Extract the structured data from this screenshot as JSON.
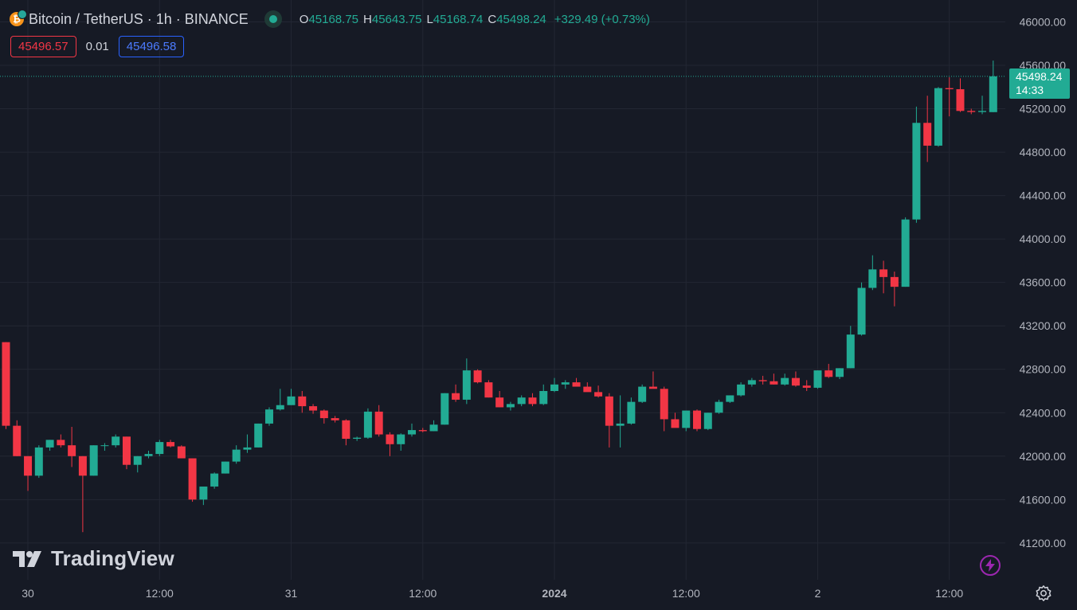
{
  "legend": {
    "symbol": "Bitcoin / TetherUS · 1h · BINANCE",
    "coin_glyph": "₿",
    "open_label": "O",
    "open": "45168.75",
    "high_label": "H",
    "high": "45643.75",
    "low_label": "L",
    "low": "45168.74",
    "close_label": "C",
    "close": "45498.24",
    "change": "+329.49 (+0.73%)"
  },
  "quote": {
    "sell": "45496.57",
    "spread": "0.01",
    "buy": "45496.58"
  },
  "price_tag": {
    "price": "45498.24",
    "countdown": "14:33"
  },
  "branding": {
    "logo_text": "TradingView"
  },
  "colors": {
    "background": "#161a25",
    "grid": "#232733",
    "up": "#22ab94",
    "down": "#f23645",
    "text": "#d1d4dc",
    "axis_text": "#b2b5be",
    "buy_border": "#2962ff",
    "flash": "#9c27b0"
  },
  "icons": {
    "market_status": "green-dot-icon",
    "flash": "lightning-icon",
    "settings": "gear-icon",
    "coin": "bitcoin-icon",
    "logo": "tradingview-icon"
  },
  "chart_data": {
    "type": "candlestick",
    "title": "Bitcoin / TetherUS · 1h · BINANCE",
    "interval": "1h",
    "ylim": [
      40950,
      46180
    ],
    "y_ticks": [
      41200,
      41600,
      42000,
      42400,
      42800,
      43200,
      43600,
      44000,
      44400,
      44800,
      45200,
      45600,
      46000
    ],
    "y_tick_labels": [
      "41200.00",
      "41600.00",
      "42000.00",
      "42400.00",
      "42800.00",
      "43200.00",
      "43600.00",
      "44000.00",
      "44400.00",
      "44800.00",
      "45200.00",
      "45600.00",
      "46000.00"
    ],
    "x_ticks": [
      {
        "label": "30",
        "bar": 2
      },
      {
        "label": "12:00",
        "bar": 14
      },
      {
        "label": "31",
        "bar": 26
      },
      {
        "label": "12:00",
        "bar": 38
      },
      {
        "label": "2024",
        "bar": 50
      },
      {
        "label": "12:00",
        "bar": 62
      },
      {
        "label": "2",
        "bar": 74
      },
      {
        "label": "12:00",
        "bar": 86
      }
    ],
    "current_price": 45498.24,
    "grid": true,
    "candles": [
      [
        43050,
        43050,
        42250,
        42280
      ],
      [
        42280,
        42330,
        42000,
        42000
      ],
      [
        42000,
        42000,
        41680,
        41820
      ],
      [
        41820,
        42100,
        41800,
        42080
      ],
      [
        42080,
        42150,
        42050,
        42150
      ],
      [
        42150,
        42200,
        42080,
        42100
      ],
      [
        42100,
        42270,
        41900,
        42000
      ],
      [
        42000,
        42000,
        41300,
        41820
      ],
      [
        41820,
        42100,
        41820,
        42100
      ],
      [
        42100,
        42120,
        42050,
        42100
      ],
      [
        42100,
        42200,
        42080,
        42180
      ],
      [
        42180,
        42180,
        41880,
        41920
      ],
      [
        41920,
        42000,
        41850,
        42000
      ],
      [
        42000,
        42050,
        41980,
        42020
      ],
      [
        42020,
        42150,
        42000,
        42130
      ],
      [
        42130,
        42150,
        42080,
        42090
      ],
      [
        42090,
        42100,
        41980,
        41980
      ],
      [
        41980,
        41980,
        41580,
        41600
      ],
      [
        41600,
        41700,
        41550,
        41720
      ],
      [
        41720,
        41850,
        41700,
        41840
      ],
      [
        41840,
        41950,
        41840,
        41950
      ],
      [
        41950,
        42100,
        41930,
        42060
      ],
      [
        42060,
        42200,
        42030,
        42080
      ],
      [
        42080,
        42300,
        42080,
        42300
      ],
      [
        42300,
        42450,
        42280,
        42430
      ],
      [
        42430,
        42620,
        42420,
        42470
      ],
      [
        42470,
        42620,
        42470,
        42550
      ],
      [
        42550,
        42600,
        42400,
        42460
      ],
      [
        42460,
        42480,
        42390,
        42420
      ],
      [
        42420,
        42430,
        42300,
        42350
      ],
      [
        42350,
        42370,
        42310,
        42330
      ],
      [
        42330,
        42340,
        42100,
        42160
      ],
      [
        42160,
        42180,
        42140,
        42170
      ],
      [
        42170,
        42440,
        42160,
        42410
      ],
      [
        42410,
        42470,
        42180,
        42200
      ],
      [
        42200,
        42220,
        42000,
        42110
      ],
      [
        42110,
        42210,
        42050,
        42200
      ],
      [
        42200,
        42300,
        42180,
        42240
      ],
      [
        42240,
        42260,
        42220,
        42230
      ],
      [
        42230,
        42330,
        42230,
        42290
      ],
      [
        42290,
        42580,
        42290,
        42580
      ],
      [
        42580,
        42660,
        42500,
        42520
      ],
      [
        42520,
        42900,
        42480,
        42790
      ],
      [
        42790,
        42800,
        42670,
        42680
      ],
      [
        42680,
        42700,
        42540,
        42540
      ],
      [
        42540,
        42600,
        42450,
        42450
      ],
      [
        42450,
        42500,
        42420,
        42480
      ],
      [
        42480,
        42560,
        42460,
        42540
      ],
      [
        42540,
        42580,
        42460,
        42480
      ],
      [
        42480,
        42660,
        42470,
        42600
      ],
      [
        42600,
        42720,
        42590,
        42660
      ],
      [
        42660,
        42700,
        42620,
        42680
      ],
      [
        42680,
        42720,
        42650,
        42640
      ],
      [
        42640,
        42680,
        42600,
        42590
      ],
      [
        42590,
        42650,
        42540,
        42550
      ],
      [
        42550,
        42580,
        42080,
        42280
      ],
      [
        42280,
        42560,
        42080,
        42300
      ],
      [
        42300,
        42540,
        42290,
        42500
      ],
      [
        42500,
        42660,
        42490,
        42640
      ],
      [
        42640,
        42780,
        42630,
        42620
      ],
      [
        42620,
        42640,
        42230,
        42340
      ],
      [
        42340,
        42400,
        42310,
        42260
      ],
      [
        42260,
        42420,
        42230,
        42420
      ],
      [
        42420,
        42430,
        42230,
        42250
      ],
      [
        42250,
        42400,
        42240,
        42400
      ],
      [
        42400,
        42520,
        42390,
        42500
      ],
      [
        42500,
        42560,
        42490,
        42560
      ],
      [
        42560,
        42680,
        42550,
        42660
      ],
      [
        42660,
        42720,
        42640,
        42700
      ],
      [
        42700,
        42740,
        42660,
        42690
      ],
      [
        42690,
        42760,
        42660,
        42660
      ],
      [
        42660,
        42760,
        42650,
        42720
      ],
      [
        42720,
        42780,
        42640,
        42650
      ],
      [
        42650,
        42700,
        42600,
        42630
      ],
      [
        42630,
        42790,
        42620,
        42790
      ],
      [
        42790,
        42850,
        42720,
        42730
      ],
      [
        42730,
        42810,
        42710,
        42810
      ],
      [
        42810,
        43200,
        42810,
        43120
      ],
      [
        43120,
        43600,
        43110,
        43550
      ],
      [
        43550,
        43850,
        43530,
        43720
      ],
      [
        43720,
        43800,
        43500,
        43650
      ],
      [
        43650,
        43700,
        43380,
        43560
      ],
      [
        43560,
        44200,
        43560,
        44180
      ],
      [
        44180,
        45220,
        44150,
        45070
      ],
      [
        45070,
        45320,
        44710,
        44860
      ],
      [
        44860,
        45400,
        44850,
        45390
      ],
      [
        45390,
        45490,
        45130,
        45380
      ],
      [
        45380,
        45480,
        45170,
        45180
      ],
      [
        45180,
        45200,
        45150,
        45170
      ],
      [
        45170,
        45320,
        45150,
        45180
      ],
      [
        45168.75,
        45643.75,
        45168.74,
        45498.24
      ]
    ]
  }
}
